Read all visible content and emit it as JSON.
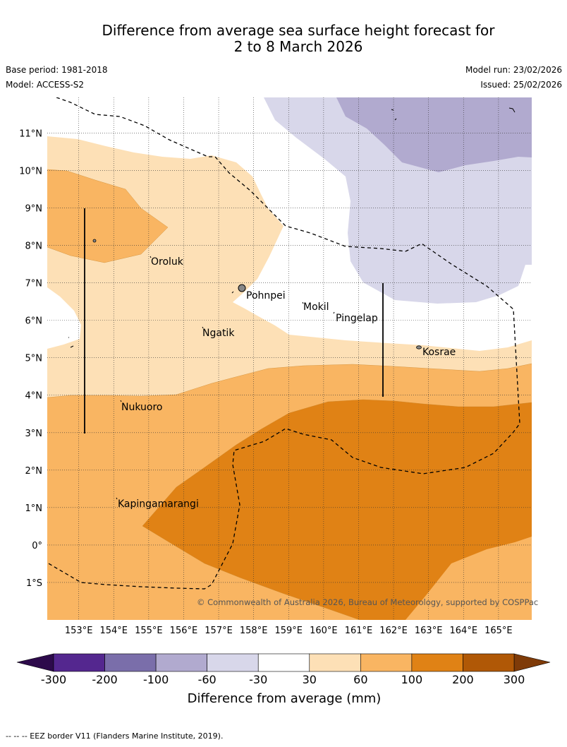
{
  "header": {
    "title_line1": "Difference from average sea surface height forecast for",
    "title_line2": "2 to 8 March 2026",
    "base_period": "Base period: 1981-2018",
    "model": "Model: ACCESS-S2",
    "model_run": "Model run: 23/02/2026",
    "issued": "Issued: 25/02/2026"
  },
  "map": {
    "lat_labels": [
      "11°N",
      "10°N",
      "9°N",
      "8°N",
      "7°N",
      "6°N",
      "5°N",
      "4°N",
      "3°N",
      "2°N",
      "1°N",
      "0°",
      "1°S"
    ],
    "lon_labels": [
      "153°E",
      "154°E",
      "155°E",
      "156°E",
      "157°E",
      "158°E",
      "159°E",
      "160°E",
      "161°E",
      "162°E",
      "163°E",
      "164°E",
      "165°E"
    ],
    "places": [
      {
        "name": "Oroluk"
      },
      {
        "name": "Pohnpei"
      },
      {
        "name": "Mokil"
      },
      {
        "name": "Pingelap"
      },
      {
        "name": "Ngatik"
      },
      {
        "name": "Kosrae"
      },
      {
        "name": "Nukuoro"
      },
      {
        "name": "Kapingamarangi"
      }
    ],
    "copyright": "© Commonwealth of Australia 2026, Bureau of Meteorology, supported by COSPPac"
  },
  "colorbar": {
    "ticks": [
      "-300",
      "-200",
      "-100",
      "-60",
      "-30",
      "30",
      "60",
      "100",
      "200",
      "300"
    ],
    "label": "Difference from average (mm)",
    "colors": {
      "below_300": "#2d0a4b",
      "n300_200": "#54278f",
      "n200_100": "#7a6eaa",
      "n100_60": "#b1aacf",
      "n60_30": "#d8d7ea",
      "n30_30": "#ffffff",
      "p30_60": "#fde0b6",
      "p60_100": "#f9b562",
      "p100_200": "#e08215",
      "p200_300": "#b05806",
      "above_300": "#7f3b08"
    }
  },
  "footer": {
    "legend": "--  --  -- EEZ border V11 (Flanders Marine Institute, 2019)."
  }
}
